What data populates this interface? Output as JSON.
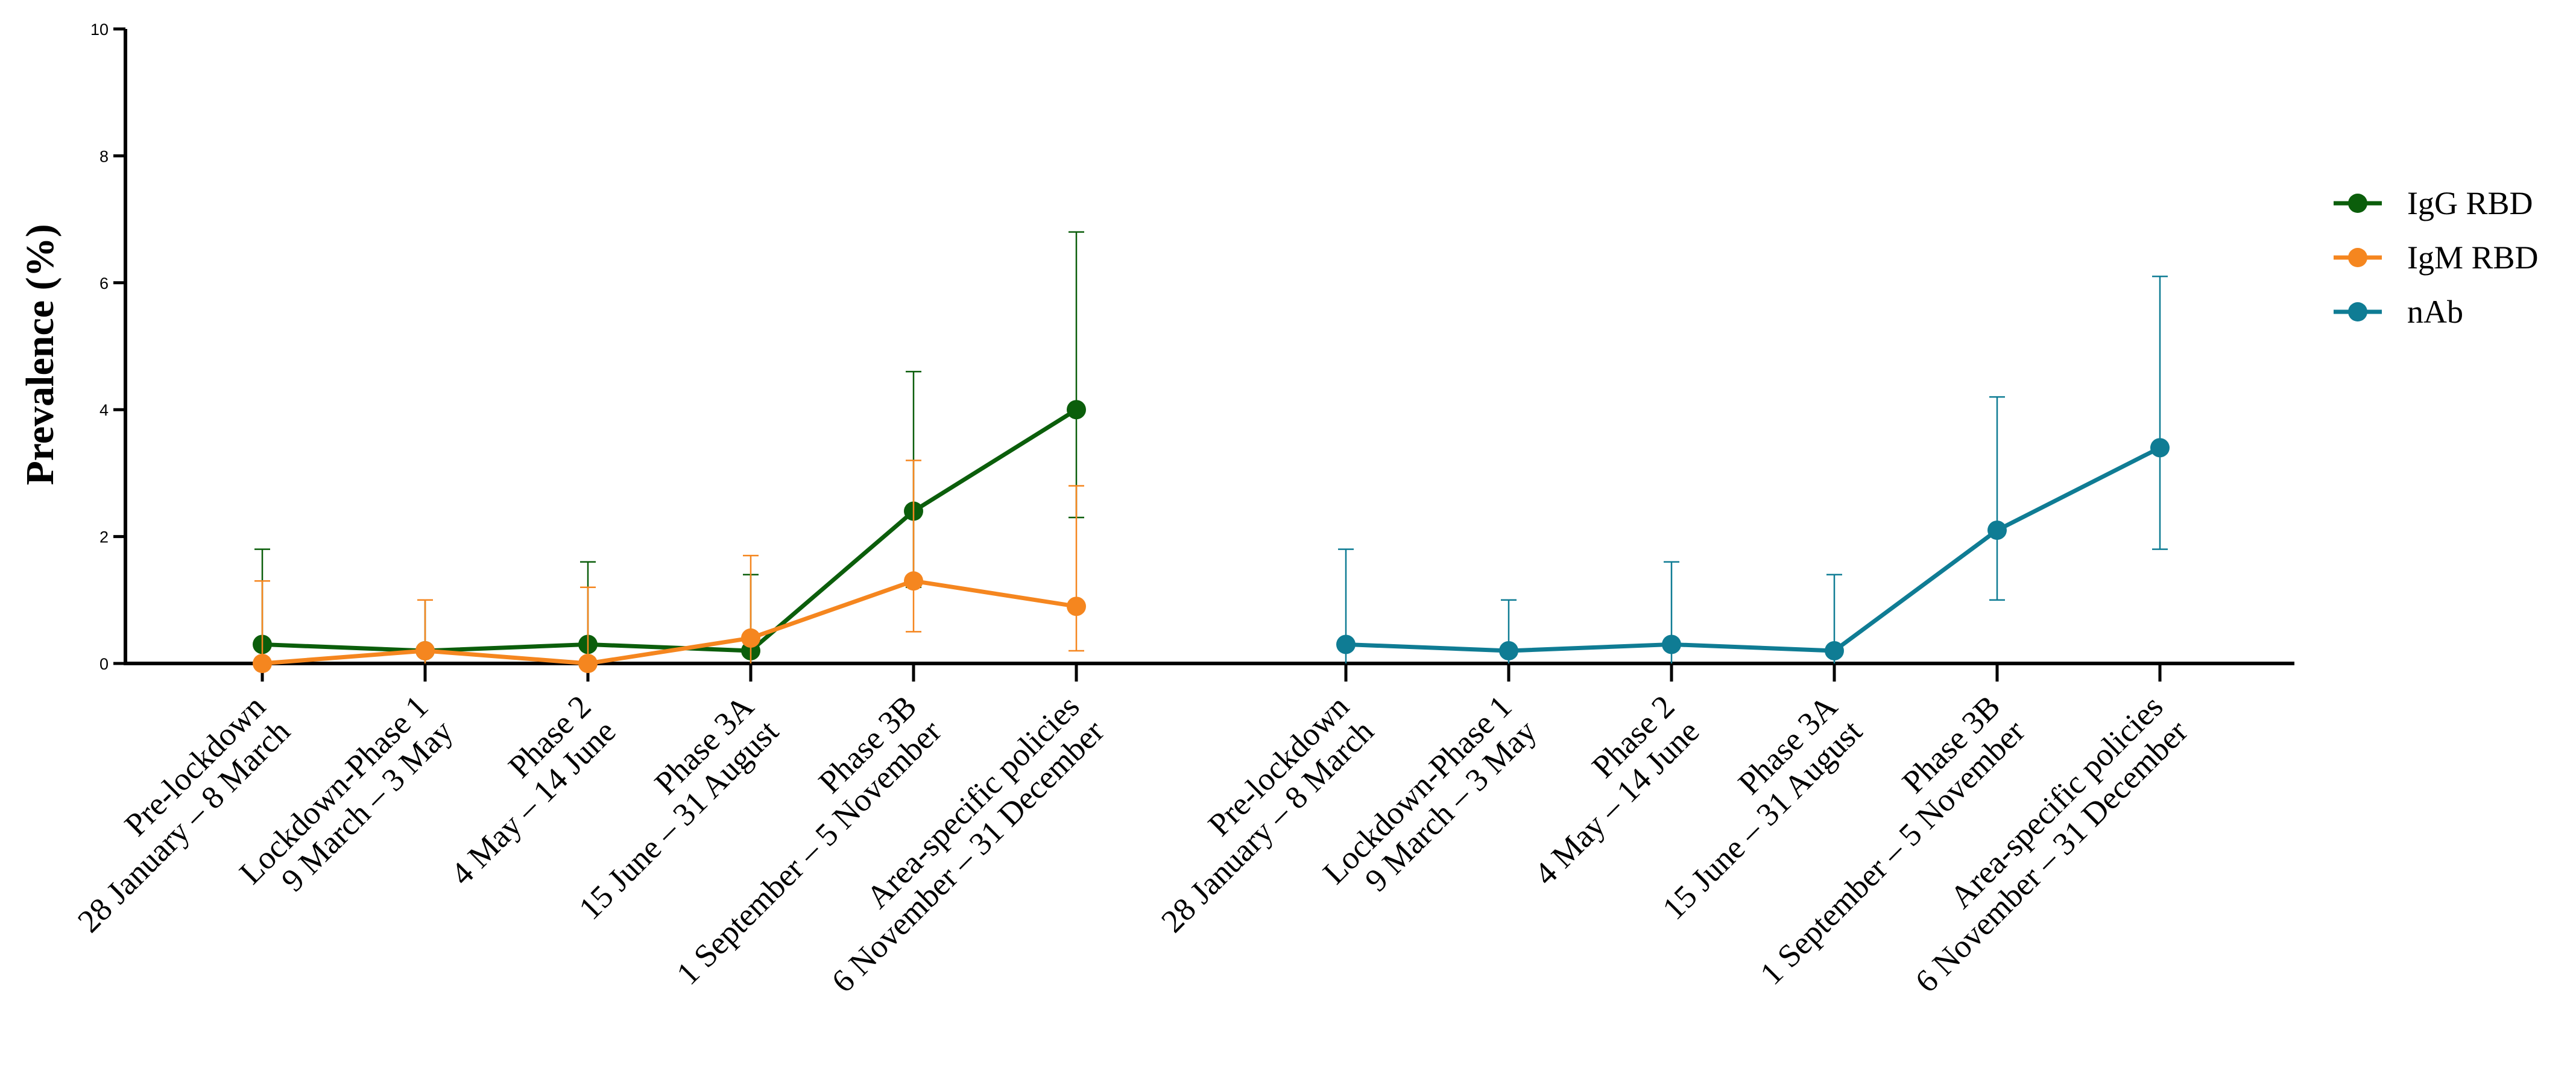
{
  "chart_data": {
    "type": "line",
    "title": "",
    "xlabel": "",
    "ylabel": "Prevalence (%)",
    "ylim": [
      0,
      10
    ],
    "yticks": [
      "0",
      "2",
      "4",
      "6",
      "8",
      "10"
    ],
    "grid": false,
    "legend_position": "right",
    "groups": [
      {
        "categories": [
          [
            "Pre-lockdown",
            "28 January – 8 March"
          ],
          [
            "Lockdown-Phase 1",
            "9 March – 3 May"
          ],
          [
            "Phase 2",
            "4 May – 14 June"
          ],
          [
            "Phase 3A",
            "15 June – 31 August"
          ],
          [
            "Phase 3B",
            "1 September – 5 November"
          ],
          [
            "Area-specific policies",
            "6 November – 31 December"
          ]
        ],
        "series": [
          {
            "name": "IgG RBD",
            "color": "#0b5e0b",
            "values": [
              0.3,
              0.2,
              0.3,
              0.2,
              2.4,
              4.0
            ],
            "err_low": [
              0.0,
              0.0,
              0.0,
              0.0,
              1.2,
              2.3
            ],
            "err_high": [
              1.8,
              1.0,
              1.6,
              1.4,
              4.6,
              6.8
            ]
          },
          {
            "name": "IgM RBD",
            "color": "#f5861f",
            "values": [
              0.0,
              0.2,
              0.0,
              0.4,
              1.3,
              0.9
            ],
            "err_low": [
              0.0,
              0.0,
              0.0,
              0.0,
              0.5,
              0.2
            ],
            "err_high": [
              1.3,
              1.0,
              1.2,
              1.7,
              3.2,
              2.8
            ]
          }
        ]
      },
      {
        "categories": [
          [
            "Pre-lockdown",
            "28 January – 8 March"
          ],
          [
            "Lockdown-Phase 1",
            "9 March – 3 May"
          ],
          [
            "Phase 2",
            "4 May – 14 June"
          ],
          [
            "Phase 3A",
            "15 June – 31 August"
          ],
          [
            "Phase 3B",
            "1 September – 5 November"
          ],
          [
            "Area-specific policies",
            "6 November – 31 December"
          ]
        ],
        "series": [
          {
            "name": "nAb",
            "color": "#0f7c94",
            "values": [
              0.3,
              0.2,
              0.3,
              0.2,
              2.1,
              3.4
            ],
            "err_low": [
              0.0,
              0.0,
              0.0,
              0.0,
              1.0,
              1.8
            ],
            "err_high": [
              1.8,
              1.0,
              1.6,
              1.4,
              4.2,
              6.1
            ]
          }
        ]
      }
    ],
    "legend": [
      {
        "name": "IgG RBD",
        "color": "#0b5e0b"
      },
      {
        "name": "IgM RBD",
        "color": "#f5861f"
      },
      {
        "name": "nAb",
        "color": "#0f7c94"
      }
    ]
  }
}
